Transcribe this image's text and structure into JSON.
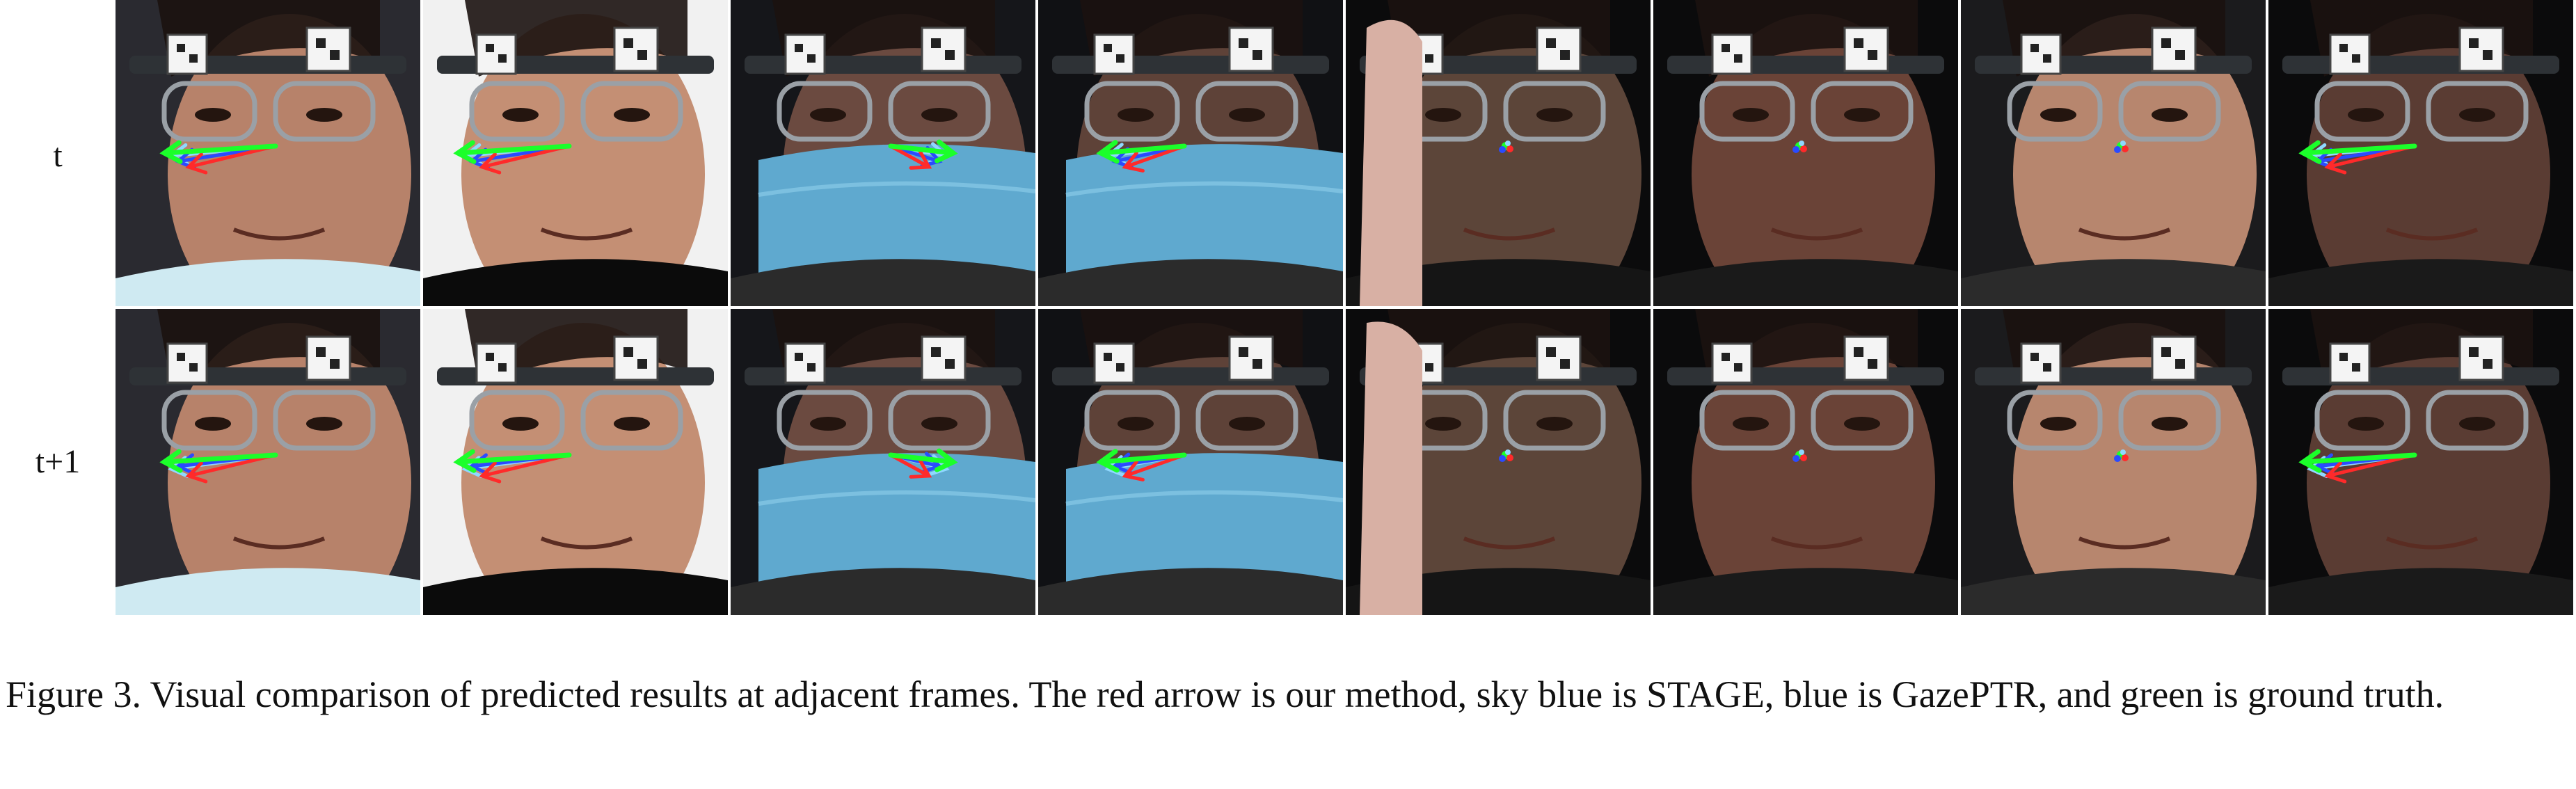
{
  "figure": {
    "row_labels": [
      "t",
      "t+1"
    ],
    "caption": "Figure 3. Visual comparison of predicted results at adjacent frames. The red arrow is our method, sky blue is STAGE, blue is GazePTR, and green is ground truth.",
    "legend_colors": {
      "ours": "#ff2a2a",
      "stage": "#8fd8ff",
      "gazeptr": "#2a4bff",
      "ground_truth": "#1bff2a"
    }
  },
  "tiles": [
    {
      "name": "p1",
      "skin": "#b7826a",
      "bg": "#2a2a30",
      "mask": false,
      "hand": false,
      "clothing": "#cfeaf2",
      "gaze": "left-long"
    },
    {
      "name": "p1-side",
      "skin": "#c48f74",
      "bg": "#f1f1f1",
      "mask": false,
      "hand": false,
      "clothing": "#0b0b0b",
      "gaze": "left-long"
    },
    {
      "name": "p2",
      "skin": "#6b4a40",
      "bg": "#15161a",
      "mask": true,
      "hand": false,
      "clothing": "#2b2b2b",
      "gaze": "right-short"
    },
    {
      "name": "p2-front",
      "skin": "#5e4238",
      "bg": "#101114",
      "mask": true,
      "hand": false,
      "clothing": "#2b2b2b",
      "gaze": "left-mid"
    },
    {
      "name": "p3",
      "skin": "#5c4539",
      "bg": "#0b0b0c",
      "mask": false,
      "hand": true,
      "clothing": "#151515",
      "gaze": "dot"
    },
    {
      "name": "p4",
      "skin": "#6a4337",
      "bg": "#0b0b0c",
      "mask": false,
      "hand": false,
      "clothing": "#1a1a1a",
      "gaze": "dot"
    },
    {
      "name": "p5",
      "skin": "#b7866e",
      "bg": "#1b1b1d",
      "mask": false,
      "hand": false,
      "clothing": "#2b2b2b",
      "gaze": "dot"
    },
    {
      "name": "p6",
      "skin": "#5a3c33",
      "bg": "#0b0b0c",
      "mask": false,
      "hand": false,
      "clothing": "#1a1a1a",
      "gaze": "left-long"
    }
  ]
}
